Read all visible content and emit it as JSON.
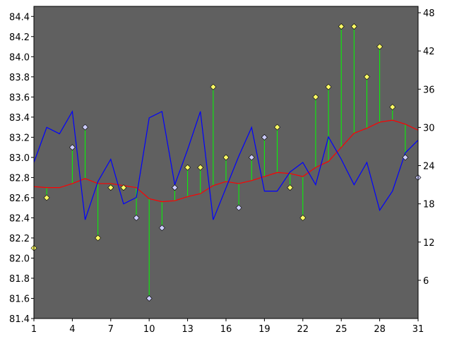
{
  "chart_data": {
    "type": "line",
    "x": [
      1,
      2,
      3,
      4,
      5,
      6,
      7,
      8,
      9,
      10,
      11,
      12,
      13,
      14,
      15,
      16,
      17,
      18,
      19,
      20,
      21,
      22,
      23,
      24,
      25,
      26,
      27,
      28,
      29,
      30,
      31
    ],
    "x_ticks": [
      "1",
      "4",
      "7",
      "10",
      "13",
      "16",
      "19",
      "22",
      "25",
      "28",
      "31"
    ],
    "xlim": [
      1,
      31
    ],
    "ylim_left": [
      81.4,
      84.5
    ],
    "y_ticks_left": [
      "81.4",
      "81.6",
      "81.8",
      "82.0",
      "82.2",
      "82.4",
      "82.6",
      "82.8",
      "83.0",
      "83.2",
      "83.4",
      "83.6",
      "83.8",
      "84.0",
      "84.2",
      "84.4"
    ],
    "ylim_right": [
      0,
      49
    ],
    "y_ticks_right": [
      "6",
      "12",
      "18",
      "24",
      "30",
      "36",
      "42",
      "48"
    ],
    "grid": false,
    "legend": "none",
    "series": [
      {
        "kind": "scatter",
        "axis": "left",
        "marker": "diamond",
        "x": [
          1,
          2,
          4,
          5,
          6,
          7,
          8,
          9,
          10,
          11,
          12,
          13,
          14,
          15,
          16,
          17,
          18,
          19,
          20,
          21,
          22,
          23,
          24,
          25,
          26,
          27,
          28,
          29,
          30,
          31
        ],
        "values": [
          82.1,
          82.6,
          83.1,
          83.3,
          82.2,
          82.7,
          82.7,
          82.4,
          81.6,
          82.3,
          82.7,
          82.9,
          82.9,
          83.7,
          83.0,
          82.5,
          83.0,
          83.2,
          83.3,
          82.7,
          82.4,
          83.6,
          83.7,
          84.3,
          84.3,
          83.8,
          84.1,
          83.5,
          83.0,
          82.8
        ],
        "marker_colors": [
          "#ffff66",
          "#ffff66",
          "#ccccff",
          "#ccccff",
          "#ffff66",
          "#ffff66",
          "#ffff66",
          "#ccccff",
          "#ccccff",
          "#ccccff",
          "#ccccff",
          "#ffff66",
          "#ffff66",
          "#ffff66",
          "#ffff66",
          "#ccccff",
          "#ccccff",
          "#ccccff",
          "#ffff66",
          "#ffff66",
          "#ffff66",
          "#ffff66",
          "#ffff66",
          "#ffff66",
          "#ffff66",
          "#ffff66",
          "#ffff66",
          "#ffff66",
          "#ccccff",
          "#ccccff"
        ]
      },
      {
        "kind": "line",
        "axis": "left",
        "color": "#ff0000",
        "x": [
          1,
          2,
          3,
          4,
          5,
          6,
          7,
          8,
          9,
          10,
          11,
          12,
          13,
          14,
          15,
          16,
          17,
          18,
          19,
          20,
          21,
          22,
          23,
          24,
          25,
          26,
          27,
          28,
          29,
          30,
          31
        ],
        "values": [
          82.71,
          82.7,
          82.7,
          82.74,
          82.79,
          82.74,
          82.74,
          82.72,
          82.7,
          82.59,
          82.56,
          82.57,
          82.61,
          82.64,
          82.72,
          82.76,
          82.74,
          82.77,
          82.81,
          82.85,
          82.84,
          82.81,
          82.9,
          82.96,
          83.1,
          83.24,
          83.29,
          83.35,
          83.37,
          83.33,
          83.27
        ]
      },
      {
        "kind": "line",
        "axis": "right",
        "color": "#0000ff",
        "x": [
          1,
          2,
          3,
          4,
          5,
          6,
          7,
          8,
          9,
          10,
          11,
          12,
          13,
          14,
          15,
          16,
          17,
          18,
          19,
          20,
          21,
          22,
          23,
          24,
          25,
          26,
          27,
          28,
          29,
          30,
          31
        ],
        "values": [
          24.5,
          30,
          29,
          32.5,
          15.5,
          21.5,
          25,
          18,
          19,
          31.5,
          32.5,
          21,
          26.5,
          32.5,
          15.5,
          20.5,
          25.5,
          30,
          20,
          20,
          23,
          24.5,
          21,
          28.5,
          25,
          21,
          24.5,
          17,
          20,
          26,
          28
        ]
      }
    ],
    "connectors": {
      "color": "#00ff00",
      "from_series": 0,
      "to_series": 1
    },
    "colors": {
      "background": "#ffffff",
      "plot_area": "#606060",
      "axis": "#000000",
      "marker_stroke": "#000000"
    }
  }
}
